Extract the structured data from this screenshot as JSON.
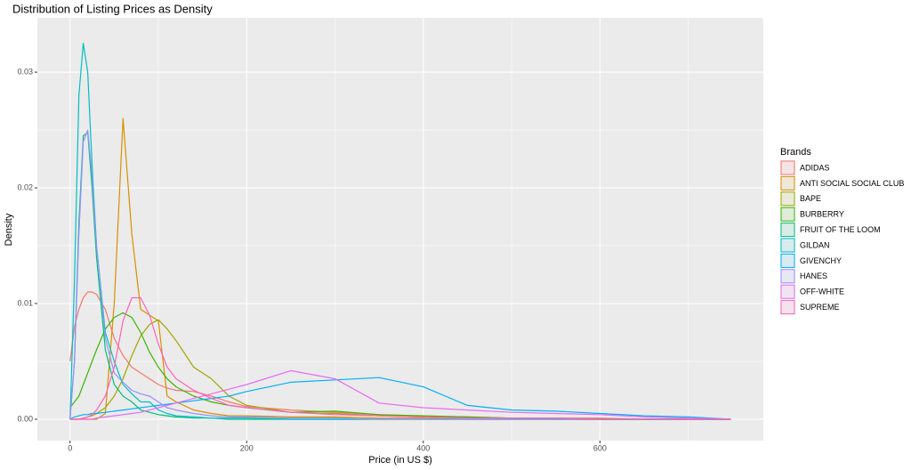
{
  "chart_data": {
    "type": "line",
    "title": "Distribution of Listing Prices as Density",
    "x_label": "Price (in US $)",
    "y_label": "Density",
    "legend_title": "Brands",
    "legend_position": "right",
    "x": [
      0,
      5,
      10,
      15,
      20,
      25,
      30,
      40,
      50,
      60,
      70,
      80,
      90,
      100,
      110,
      120,
      140,
      160,
      180,
      200,
      250,
      300,
      350,
      400,
      450,
      500,
      550,
      600,
      650,
      700,
      748
    ],
    "xlim": [
      -37,
      785
    ],
    "xticks": [
      0,
      200,
      400,
      600
    ],
    "x_minor_grid": [
      100,
      300,
      500,
      700
    ],
    "ylim": [
      -0.00185,
      0.0347
    ],
    "yticks": [
      {
        "value": 0,
        "label": "0.00"
      },
      0.01,
      0.02,
      0.03
    ],
    "y_minor_grid": [
      0.005,
      0.015,
      0.025
    ],
    "grid": true,
    "background": "#ebebeb",
    "series": [
      {
        "name": "ADIDAS",
        "color": "#F8766D",
        "values": [
          0.005,
          0.008,
          0.0095,
          0.0105,
          0.011,
          0.011,
          0.0108,
          0.0095,
          0.007,
          0.0055,
          0.0045,
          0.004,
          0.0035,
          0.003,
          0.0027,
          0.0025,
          0.0024,
          0.002,
          0.0015,
          0.0011,
          0.0008,
          0.0006,
          0.0004,
          0.0002,
          0.0002,
          0.0001,
          0.0001,
          0.0001,
          0,
          0,
          0
        ]
      },
      {
        "name": "ANTI SOCIAL SOCIAL CLUB",
        "color": "#D89000",
        "values": [
          0,
          0,
          0,
          0,
          0,
          0,
          0,
          0.0005,
          0.01,
          0.026,
          0.016,
          0.0095,
          0.009,
          0.0085,
          0.002,
          0.0015,
          0.0008,
          0.0005,
          0.0003,
          0.0003,
          0.0002,
          0.0002,
          0.0001,
          0.0001,
          0,
          0,
          0,
          0,
          0,
          0,
          0
        ]
      },
      {
        "name": "BAPE",
        "color": "#A3A500",
        "values": [
          0,
          0,
          0,
          0.0001,
          0.0002,
          0.0003,
          0.0005,
          0.001,
          0.002,
          0.0035,
          0.0055,
          0.0072,
          0.0082,
          0.0086,
          0.0078,
          0.0068,
          0.0045,
          0.0035,
          0.002,
          0.0012,
          0.0006,
          0.0005,
          0.0003,
          0.0002,
          0.0001,
          0.0001,
          0,
          0,
          0,
          0,
          0
        ]
      },
      {
        "name": "BURBERRY",
        "color": "#39B600",
        "values": [
          0.001,
          0.0015,
          0.002,
          0.003,
          0.004,
          0.005,
          0.006,
          0.0078,
          0.0088,
          0.0092,
          0.0088,
          0.0075,
          0.0058,
          0.0045,
          0.0035,
          0.0028,
          0.002,
          0.0015,
          0.0012,
          0.001,
          0.0006,
          0.0007,
          0.0004,
          0.0003,
          0.0002,
          0.0001,
          0.0001,
          0,
          0,
          0,
          0
        ]
      },
      {
        "name": "FRUIT OF THE LOOM",
        "color": "#00BF7D",
        "values": [
          0,
          0.005,
          0.017,
          0.0245,
          0.0248,
          0.02,
          0.014,
          0.006,
          0.003,
          0.002,
          0.0015,
          0.0008,
          0.0006,
          0.0004,
          0.0003,
          0.0002,
          0.0001,
          0.0001,
          0,
          0,
          0,
          0,
          0,
          0,
          0,
          0,
          0,
          0,
          0,
          0,
          0
        ]
      },
      {
        "name": "GILDAN",
        "color": "#00BFC4",
        "values": [
          0,
          0.012,
          0.028,
          0.0325,
          0.03,
          0.022,
          0.015,
          0.0075,
          0.005,
          0.003,
          0.0022,
          0.0015,
          0.0015,
          0.0008,
          0.0005,
          0.0003,
          0.0002,
          0.0001,
          0.0001,
          0.0001,
          0,
          0,
          0,
          0,
          0,
          0,
          0,
          0,
          0,
          0,
          0
        ]
      },
      {
        "name": "GIVENCHY",
        "color": "#00B0F6",
        "values": [
          0,
          0.0002,
          0.0003,
          0.0004,
          0.0004,
          0.0005,
          0.0005,
          0.0006,
          0.0007,
          0.0008,
          0.0009,
          0.001,
          0.0011,
          0.0012,
          0.0013,
          0.0014,
          0.0016,
          0.0018,
          0.002,
          0.0024,
          0.0032,
          0.0034,
          0.0036,
          0.0028,
          0.0012,
          0.0008,
          0.0007,
          0.0005,
          0.0003,
          0.0002,
          0
        ]
      },
      {
        "name": "HANES",
        "color": "#9590FF",
        "values": [
          0,
          0.005,
          0.016,
          0.024,
          0.025,
          0.021,
          0.015,
          0.007,
          0.004,
          0.0032,
          0.0025,
          0.0022,
          0.002,
          0.0015,
          0.001,
          0.0008,
          0.0005,
          0.0003,
          0.0002,
          0.0002,
          0.0001,
          0.0001,
          0,
          0,
          0,
          0,
          0,
          0,
          0,
          0,
          0
        ]
      },
      {
        "name": "OFF-WHITE",
        "color": "#E76BF3",
        "values": [
          0,
          0,
          0,
          0,
          0,
          0,
          0.0001,
          0.0002,
          0.0003,
          0.0004,
          0.0005,
          0.0006,
          0.0008,
          0.001,
          0.0012,
          0.0014,
          0.0018,
          0.0022,
          0.0026,
          0.003,
          0.0042,
          0.0035,
          0.0014,
          0.001,
          0.0008,
          0.0006,
          0.0005,
          0.0004,
          0.0002,
          0.0001,
          0
        ]
      },
      {
        "name": "SUPREME",
        "color": "#FF62BC",
        "values": [
          0,
          0,
          0,
          0.0001,
          0.0002,
          0.0004,
          0.0008,
          0.002,
          0.0045,
          0.0085,
          0.0105,
          0.0105,
          0.009,
          0.0065,
          0.0045,
          0.0035,
          0.0025,
          0.0018,
          0.0012,
          0.001,
          0.0006,
          0.0004,
          0.0003,
          0.0002,
          0.0001,
          0.0001,
          0.0001,
          0,
          0,
          0,
          0
        ]
      }
    ]
  }
}
